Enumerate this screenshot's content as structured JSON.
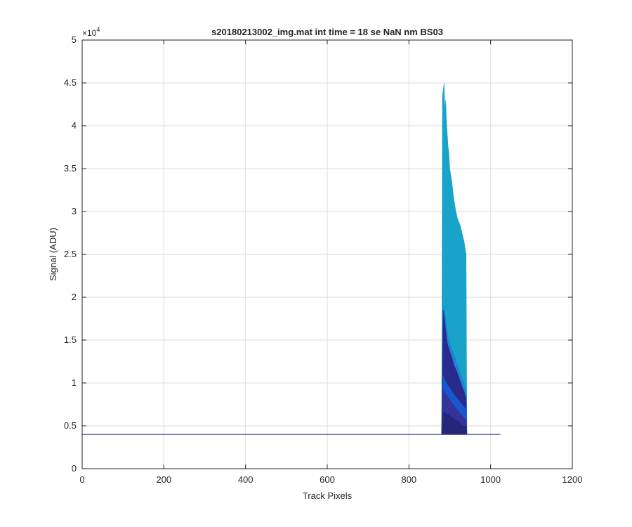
{
  "chart_data": {
    "type": "area",
    "title": "s20180213002_img.mat int time = 18 se  NaN nm BS03",
    "xlabel": "Track Pixels",
    "ylabel": "Signal (ADU)",
    "y_exponent_label": "×10",
    "y_exponent_power": "4",
    "xlim": [
      0,
      1200
    ],
    "ylim": [
      0,
      50000
    ],
    "x_ticks": [
      0,
      200,
      400,
      600,
      800,
      1000,
      1200
    ],
    "x_tick_labels": [
      "0",
      "200",
      "400",
      "600",
      "800",
      "1000",
      "1200"
    ],
    "y_ticks": [
      0,
      5000,
      10000,
      15000,
      20000,
      25000,
      30000,
      35000,
      40000,
      45000,
      50000
    ],
    "y_tick_labels": [
      "0",
      "0.5",
      "1",
      "1.5",
      "2",
      "2.5",
      "3",
      "3.5",
      "4",
      "4.5",
      "5"
    ],
    "grid": true,
    "baseline": {
      "x": [
        0,
        1024
      ],
      "y": 4000,
      "color": "#3d3d8f"
    },
    "series": [
      {
        "color": "#1aa3c9",
        "x": [
          880,
          882,
          884,
          886,
          888,
          890,
          892,
          894,
          896,
          898,
          900,
          905,
          910,
          915,
          920,
          925,
          930,
          935,
          940,
          942
        ],
        "y": [
          4000,
          43500,
          44200,
          45000,
          42000,
          43000,
          40500,
          39000,
          37500,
          36800,
          35000,
          33500,
          31500,
          30000,
          29000,
          28500,
          27500,
          26500,
          25000,
          4000
        ]
      },
      {
        "color": "#1e82d6",
        "x": [
          880,
          882,
          884,
          886,
          888,
          890,
          892,
          894,
          896,
          898,
          900,
          905,
          910,
          915,
          920,
          925,
          930,
          935,
          940,
          942
        ],
        "y": [
          4000,
          15500,
          17800,
          19000,
          18200,
          17500,
          16500,
          16000,
          15400,
          15000,
          14700,
          14000,
          13300,
          12700,
          12000,
          11300,
          10600,
          9800,
          9000,
          4000
        ]
      },
      {
        "color": "#2a2a8c",
        "x": [
          880,
          884,
          888,
          892,
          896,
          900,
          905,
          910,
          915,
          920,
          925,
          930,
          935,
          940,
          942
        ],
        "y": [
          4000,
          18500,
          17200,
          15200,
          14300,
          13700,
          13000,
          12100,
          11600,
          11000,
          10300,
          9600,
          9000,
          8200,
          4000
        ]
      },
      {
        "color": "#1558d0",
        "x": [
          880,
          884,
          888,
          892,
          896,
          900,
          905,
          910,
          915,
          920,
          925,
          930,
          935,
          940,
          942
        ],
        "y": [
          4000,
          10800,
          10400,
          10000,
          9700,
          9400,
          9000,
          8700,
          8400,
          8100,
          7800,
          7500,
          7200,
          7000,
          4000
        ]
      },
      {
        "color": "#33339a",
        "x": [
          880,
          884,
          888,
          892,
          896,
          900,
          905,
          910,
          915,
          920,
          925,
          930,
          935,
          940,
          942
        ],
        "y": [
          4000,
          9200,
          8900,
          8600,
          8300,
          8000,
          7700,
          7400,
          7100,
          6800,
          6500,
          6200,
          5900,
          5700,
          4000
        ]
      },
      {
        "color": "#25257a",
        "x": [
          880,
          884,
          888,
          892,
          896,
          900,
          905,
          910,
          915,
          920,
          925,
          930,
          935,
          940,
          942
        ],
        "y": [
          4000,
          6600,
          6500,
          6400,
          6300,
          6200,
          6000,
          5800,
          5700,
          5500,
          5300,
          5100,
          5000,
          4900,
          4000
        ]
      }
    ]
  }
}
